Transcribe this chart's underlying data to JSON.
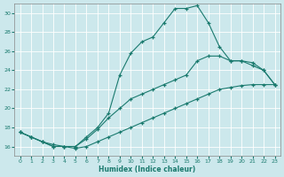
{
  "xlabel": "Humidex (Indice chaleur)",
  "bg_color": "#cce8ec",
  "grid_color": "#ffffff",
  "line_color": "#1a7a6e",
  "xlim": [
    -0.5,
    23.5
  ],
  "ylim": [
    15.0,
    31.0
  ],
  "yticks": [
    16,
    18,
    20,
    22,
    24,
    26,
    28,
    30
  ],
  "xticks": [
    0,
    1,
    2,
    3,
    4,
    5,
    6,
    7,
    8,
    9,
    10,
    11,
    12,
    13,
    14,
    15,
    16,
    17,
    18,
    19,
    20,
    21,
    22,
    23
  ],
  "y_peak": [
    17.5,
    17.0,
    16.5,
    16.0,
    16.0,
    16.0,
    17.0,
    18.0,
    19.5,
    23.5,
    25.8,
    27.0,
    27.5,
    29.0,
    30.5,
    30.5,
    30.8,
    29.0,
    26.5,
    25.0,
    25.0,
    24.5,
    24.0,
    22.5
  ],
  "y_upper": [
    17.5,
    17.0,
    16.5,
    16.2,
    16.0,
    16.0,
    16.8,
    17.8,
    19.0,
    20.0,
    21.0,
    21.5,
    22.0,
    22.5,
    23.0,
    23.5,
    25.0,
    25.5,
    25.5,
    25.0,
    25.0,
    24.8,
    24.0,
    22.5
  ],
  "y_lower": [
    17.5,
    17.0,
    16.5,
    16.0,
    16.0,
    15.8,
    16.0,
    16.5,
    17.0,
    17.5,
    18.0,
    18.5,
    19.0,
    19.5,
    20.0,
    20.5,
    21.0,
    21.5,
    22.0,
    22.2,
    22.4,
    22.5,
    22.5,
    22.5
  ]
}
